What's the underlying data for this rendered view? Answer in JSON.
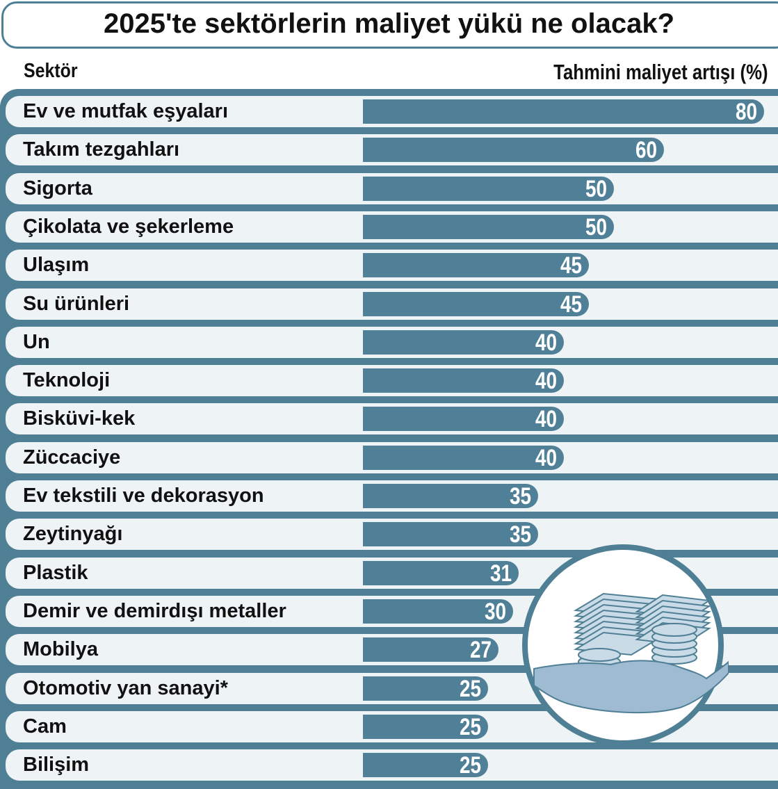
{
  "chart_data": {
    "type": "bar",
    "orientation": "horizontal",
    "title": "2025'te sektörlerin maliyet yükü ne olacak?",
    "category_header": "Sektör",
    "value_header": "Tahmini maliyet artışı (%)",
    "categories": [
      "Ev ve mutfak eşyaları",
      "Takım tezgahları",
      "Sigorta",
      "Çikolata ve şekerleme",
      "Ulaşım",
      "Su ürünleri",
      "Un",
      "Teknoloji",
      "Bisküvi-kek",
      "Züccaciye",
      "Ev tekstili ve dekorasyon",
      "Zeytinyağı",
      "Plastik",
      "Demir ve demirdışı metaller",
      "Mobilya",
      "Otomotiv yan sanayi*",
      "Cam",
      "Bilişim"
    ],
    "values": [
      80,
      60,
      50,
      50,
      45,
      45,
      40,
      40,
      40,
      40,
      35,
      35,
      31,
      30,
      27,
      25,
      25,
      25
    ],
    "xlim": [
      0,
      80
    ],
    "grid": false,
    "legend": "none",
    "colors": {
      "bar": "#4f8098",
      "panel": "#4f7f95",
      "row": "#eef3f5",
      "value_text": "#ffffff"
    }
  },
  "illustration": {
    "icon": "money-stack-hand-icon",
    "colors": {
      "circle": "#ffffff",
      "ring": "#4f7f95",
      "money": "#c9dbe6",
      "hand": "#9ebbd1"
    }
  }
}
